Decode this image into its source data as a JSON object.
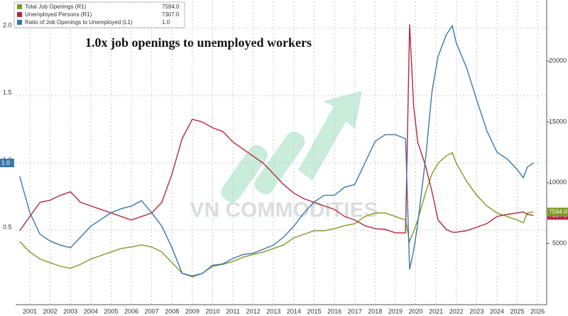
{
  "chart_data": {
    "type": "line",
    "title": "1.0x job openings to unemployed workers",
    "watermark": "VN COMMODITIES",
    "x": [
      2001.0,
      2001.5,
      2002.0,
      2002.5,
      2003.0,
      2003.5,
      2004.0,
      2004.5,
      2005.0,
      2005.5,
      2006.0,
      2006.5,
      2007.0,
      2007.5,
      2008.0,
      2008.5,
      2009.0,
      2009.5,
      2010.0,
      2010.5,
      2011.0,
      2011.5,
      2012.0,
      2012.5,
      2013.0,
      2013.5,
      2014.0,
      2014.5,
      2015.0,
      2015.5,
      2016.0,
      2016.5,
      2017.0,
      2017.5,
      2018.0,
      2018.5,
      2019.0,
      2019.5,
      2020.0,
      2020.2,
      2020.4,
      2020.6,
      2021.0,
      2021.3,
      2021.6,
      2022.0,
      2022.3,
      2022.5,
      2023.0,
      2023.5,
      2024.0,
      2024.5,
      2025.0,
      2025.5,
      2025.8,
      2026.0,
      2026.3
    ],
    "series": [
      {
        "name": "Total Job Openings (R1)",
        "last_label": "7594.0",
        "color": "#7f9a22",
        "axis": "y2",
        "values": [
          5160,
          4300,
          3720,
          3420,
          3130,
          2960,
          3290,
          3720,
          4010,
          4300,
          4590,
          4710,
          4880,
          4710,
          4300,
          3420,
          2550,
          2260,
          2550,
          3130,
          3290,
          3520,
          3870,
          4100,
          4300,
          4590,
          4880,
          5470,
          5760,
          6050,
          6050,
          6220,
          6460,
          6630,
          7220,
          7510,
          7510,
          7220,
          6930,
          5160,
          6000,
          6930,
          9260,
          10720,
          11590,
          12200,
          12470,
          11590,
          10130,
          8960,
          8090,
          7510,
          7220,
          6930,
          6700,
          7510,
          7594
        ]
      },
      {
        "name": "Unemployed Persons (R1)",
        "last_label": "7307.0",
        "color": "#b3283f",
        "axis": "y2",
        "values": [
          6050,
          7220,
          8380,
          8560,
          8960,
          9250,
          8380,
          8090,
          7800,
          7510,
          7220,
          6930,
          7220,
          7510,
          8380,
          10720,
          13630,
          15210,
          14980,
          14510,
          14210,
          13340,
          12760,
          12180,
          11590,
          10720,
          9840,
          9140,
          8680,
          8380,
          8090,
          7800,
          7220,
          6930,
          6460,
          6220,
          6160,
          5870,
          5870,
          23000,
          16260,
          13340,
          11300,
          9260,
          6930,
          6160,
          5930,
          5930,
          6050,
          6340,
          6630,
          7220,
          7390,
          7510,
          7600,
          7390,
          7307
        ]
      },
      {
        "name": "Ratio of Job Openings to Unemployed (L1)",
        "last_label": "1.0",
        "color": "#3a77a8",
        "axis": "y",
        "values": [
          0.9,
          0.63,
          0.47,
          0.42,
          0.39,
          0.37,
          0.45,
          0.53,
          0.58,
          0.63,
          0.66,
          0.68,
          0.72,
          0.63,
          0.53,
          0.37,
          0.18,
          0.16,
          0.18,
          0.24,
          0.25,
          0.29,
          0.32,
          0.33,
          0.36,
          0.39,
          0.45,
          0.53,
          0.63,
          0.71,
          0.76,
          0.76,
          0.82,
          0.84,
          1.0,
          1.16,
          1.21,
          1.21,
          1.18,
          0.21,
          0.35,
          0.55,
          1.05,
          1.53,
          1.79,
          1.95,
          2.02,
          1.89,
          1.71,
          1.47,
          1.24,
          1.08,
          1.03,
          0.95,
          0.89,
          0.97,
          1.0
        ]
      }
    ],
    "xlim": [
      2000.8,
      2026.95
    ],
    "xticks": [
      {
        "value": 2001.5,
        "label": "2001"
      },
      {
        "value": 2002.5,
        "label": "2002"
      },
      {
        "value": 2003.5,
        "label": "2003"
      },
      {
        "value": 2004.5,
        "label": "2004"
      },
      {
        "value": 2005.5,
        "label": "2005"
      },
      {
        "value": 2006.5,
        "label": "2006"
      },
      {
        "value": 2007.5,
        "label": "2007"
      },
      {
        "value": 2008.5,
        "label": "2008"
      },
      {
        "value": 2009.5,
        "label": "2009"
      },
      {
        "value": 2010.5,
        "label": "2010"
      },
      {
        "value": 2011.5,
        "label": "2011"
      },
      {
        "value": 2012.5,
        "label": "2012"
      },
      {
        "value": 2013.5,
        "label": "2013"
      },
      {
        "value": 2014.5,
        "label": "2014"
      },
      {
        "value": 2015.5,
        "label": "2015"
      },
      {
        "value": 2016.5,
        "label": "2016"
      },
      {
        "value": 2017.5,
        "label": "2017"
      },
      {
        "value": 2018.5,
        "label": "2018"
      },
      {
        "value": 2019.5,
        "label": "2019"
      },
      {
        "value": 2020.5,
        "label": "2020"
      },
      {
        "value": 2021.5,
        "label": "2021"
      },
      {
        "value": 2022.5,
        "label": "2022"
      },
      {
        "value": 2023.5,
        "label": "2023"
      },
      {
        "value": 2024.5,
        "label": "2024"
      },
      {
        "value": 2025.5,
        "label": "2025"
      },
      {
        "value": 2026.5,
        "label": "2026"
      }
    ],
    "ylim": [
      -0.05,
      2.2
    ],
    "yticks": [
      {
        "value": 0.5,
        "label": "0.5"
      },
      {
        "value": 1.0,
        "label": "1.0"
      },
      {
        "value": 1.5,
        "label": "1.5"
      },
      {
        "value": 2.0,
        "label": "2.0"
      }
    ],
    "y2lim": [
      0,
      24900
    ],
    "y2ticks": [
      5000,
      10000,
      15000,
      20000
    ],
    "grid": true
  }
}
